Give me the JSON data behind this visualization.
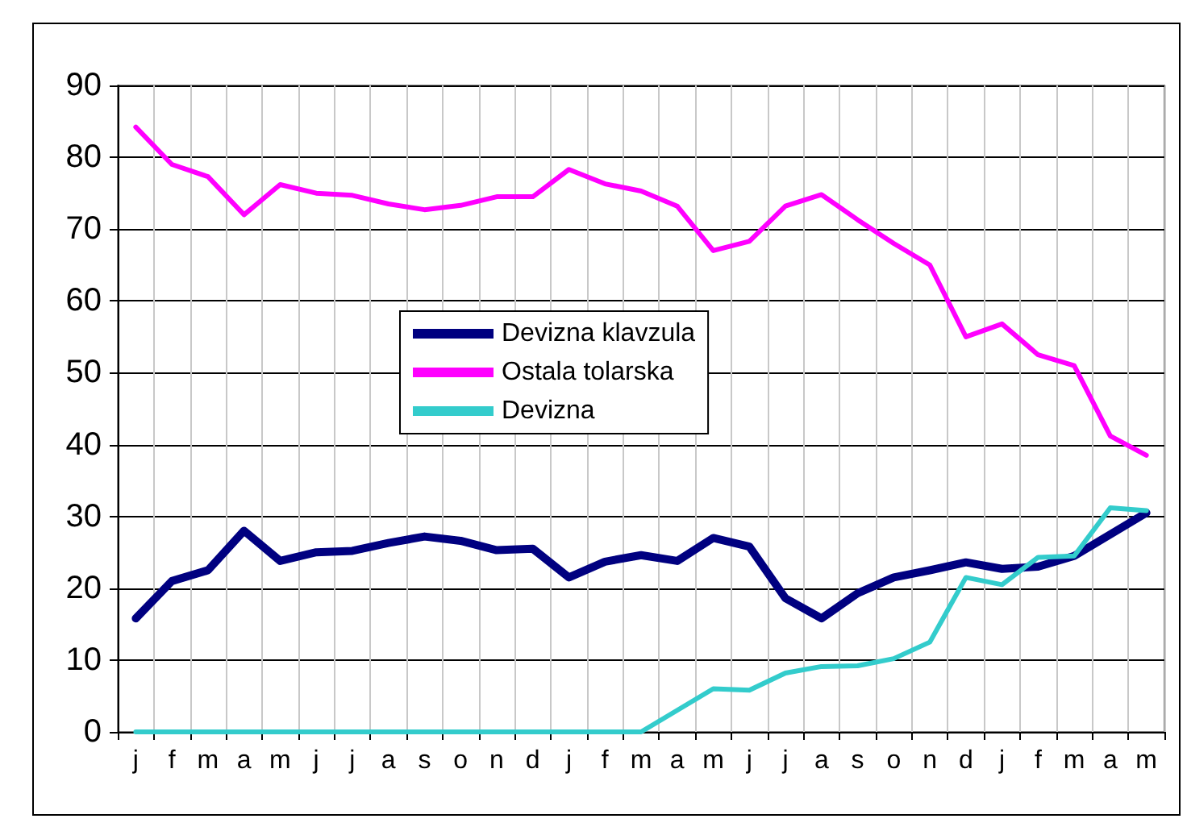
{
  "chart_data": {
    "type": "line",
    "categories": [
      "j",
      "f",
      "m",
      "a",
      "m",
      "j",
      "j",
      "a",
      "s",
      "o",
      "n",
      "d",
      "j",
      "f",
      "m",
      "a",
      "m",
      "j",
      "j",
      "a",
      "s",
      "o",
      "n",
      "d",
      "j",
      "f",
      "m",
      "a",
      "m"
    ],
    "series": [
      {
        "name": "Devizna klavzula",
        "color": "#000080",
        "values": [
          15.8,
          21,
          22.5,
          28,
          23.8,
          25,
          25.2,
          26.3,
          27.2,
          26.6,
          25.3,
          25.5,
          21.5,
          23.7,
          24.6,
          23.8,
          27,
          25.8,
          18.6,
          15.8,
          19.3,
          21.5,
          22.5,
          23.6,
          22.7,
          23,
          24.5,
          27.5,
          30.5
        ]
      },
      {
        "name": "Ostala tolarska",
        "color": "#ff00ff",
        "values": [
          84.2,
          79,
          77.3,
          72,
          76.2,
          75,
          74.7,
          73.5,
          72.7,
          73.3,
          74.5,
          74.5,
          78.3,
          76.3,
          75.3,
          73.2,
          67,
          68.3,
          73.2,
          74.8,
          71.3,
          68,
          65,
          55,
          56.8,
          52.5,
          51,
          41.2,
          38.5
        ]
      },
      {
        "name": "Devizna",
        "color": "#33cccc",
        "values": [
          0,
          0,
          0,
          0,
          0,
          0,
          0,
          0,
          0,
          0,
          0,
          0,
          0,
          0,
          0,
          3,
          6,
          5.8,
          8.2,
          9.1,
          9.2,
          10.2,
          12.5,
          21.5,
          20.5,
          24.3,
          24.5,
          31.2,
          30.8
        ]
      }
    ],
    "ylim": [
      0,
      90
    ],
    "yticks": [
      0,
      10,
      20,
      30,
      40,
      50,
      60,
      70,
      80,
      90
    ],
    "grid": true,
    "legend": "center",
    "marker": "none",
    "line_style": "solid"
  }
}
